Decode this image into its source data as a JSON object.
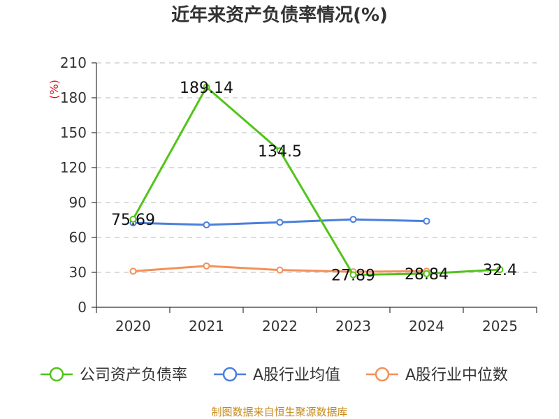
{
  "chart_data": {
    "type": "line",
    "title": "近年来资产负债率情况(%)",
    "ylabel": "(%)",
    "categories": [
      "2020",
      "2021",
      "2022",
      "2023",
      "2024",
      "2025"
    ],
    "ylim": [
      0,
      210
    ],
    "yticks": [
      0,
      30,
      60,
      90,
      120,
      150,
      180,
      210
    ],
    "grid": true,
    "legend_position": "bottom",
    "series": [
      {
        "name": "公司资产负债率",
        "color": "#52c41a",
        "values": [
          75.69,
          189.14,
          134.5,
          27.89,
          28.84,
          32.4
        ],
        "labels": [
          "75.69",
          "189.14",
          "134.5",
          "27.89",
          "28.84",
          "32.4"
        ]
      },
      {
        "name": "A股行业均值",
        "color": "#4a7fdc",
        "values": [
          72.5,
          70.8,
          73.0,
          75.5,
          74.0,
          null
        ],
        "labels": [
          null,
          null,
          null,
          null,
          null,
          null
        ]
      },
      {
        "name": "A股行业中位数",
        "color": "#f4905a",
        "values": [
          31.0,
          35.5,
          32.0,
          30.5,
          31.0,
          null
        ],
        "labels": [
          null,
          null,
          null,
          null,
          null,
          null
        ]
      }
    ]
  },
  "source": "制图数据来自恒生聚源数据库"
}
